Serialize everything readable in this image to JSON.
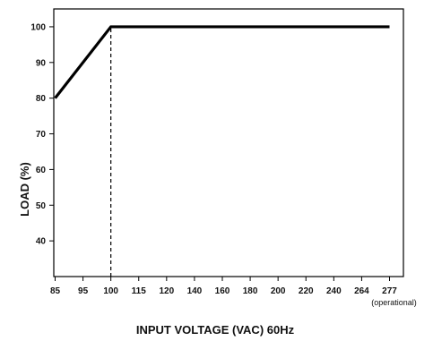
{
  "chart_data": {
    "type": "line",
    "title": "",
    "xlabel": "INPUT VOLTAGE (VAC) 60Hz",
    "ylabel": "LOAD (%)",
    "x_ticks": [
      {
        "value": 85,
        "label": "85",
        "sublabel": ""
      },
      {
        "value": 95,
        "label": "95",
        "sublabel": ""
      },
      {
        "value": 100,
        "label": "100",
        "sublabel": ""
      },
      {
        "value": 115,
        "label": "115",
        "sublabel": ""
      },
      {
        "value": 120,
        "label": "120",
        "sublabel": ""
      },
      {
        "value": 140,
        "label": "140",
        "sublabel": ""
      },
      {
        "value": 160,
        "label": "160",
        "sublabel": ""
      },
      {
        "value": 180,
        "label": "180",
        "sublabel": ""
      },
      {
        "value": 200,
        "label": "200",
        "sublabel": ""
      },
      {
        "value": 220,
        "label": "220",
        "sublabel": ""
      },
      {
        "value": 240,
        "label": "240",
        "sublabel": ""
      },
      {
        "value": 264,
        "label": "264",
        "sublabel": ""
      },
      {
        "value": 277,
        "label": "277",
        "sublabel": "(operational)"
      }
    ],
    "y_ticks": [
      40,
      50,
      60,
      70,
      80,
      90,
      100
    ],
    "ylim": [
      30,
      105
    ],
    "x_axis_extent": [
      85,
      277
    ],
    "grid": false,
    "legend": "none",
    "series": [
      {
        "x": [
          85,
          100,
          277
        ],
        "values": [
          80,
          100,
          100
        ]
      }
    ],
    "reference_lines": [
      {
        "x": 100,
        "y_from": 30,
        "y_to": 100,
        "style": "dashed"
      }
    ],
    "colors": {
      "line": "#000000",
      "axis": "#000000"
    }
  }
}
